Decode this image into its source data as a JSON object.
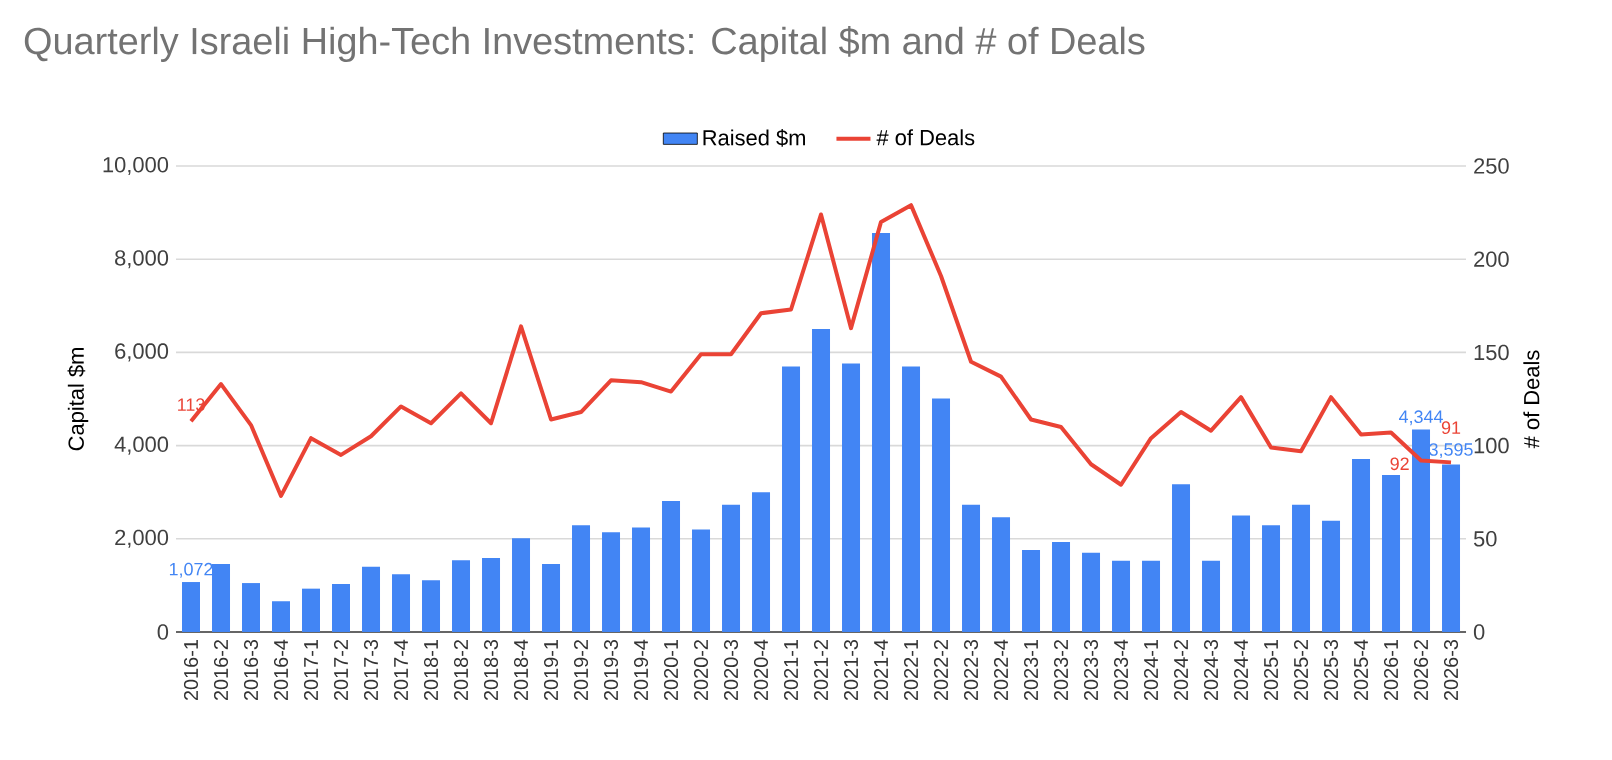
{
  "chart_data": {
    "type": "bar",
    "title": "Quarterly Israeli High-Tech Investments: Capital $m and # of Deals",
    "ylabel": "Capital $m",
    "y2label": "# of Deals",
    "categories": [
      "2016-1",
      "2016-2",
      "2016-3",
      "2016-4",
      "2017-1",
      "2017-2",
      "2017-3",
      "2017-4",
      "2018-1",
      "2018-2",
      "2018-3",
      "2018-4",
      "2019-1",
      "2019-2",
      "2019-3",
      "2019-4",
      "2020-1",
      "2020-2",
      "2020-3",
      "2020-4",
      "2021-1",
      "2021-2",
      "2021-3",
      "2021-4",
      "2022-1",
      "2022-2",
      "2022-3",
      "2022-4",
      "2023-1",
      "2023-2",
      "2023-3",
      "2023-4",
      "2024-1",
      "2024-2",
      "2024-3",
      "2024-4",
      "2025-1",
      "2025-2",
      "2025-3",
      "2025-4",
      "2026-1",
      "2026-2",
      "2026-3"
    ],
    "series": [
      {
        "name": "Raised $m",
        "color": "#4285f4",
        "values": [
          1072,
          1460,
          1050,
          660,
          930,
          1030,
          1400,
          1240,
          1110,
          1540,
          1590,
          2010,
          1460,
          2290,
          2140,
          2240,
          2810,
          2200,
          2730,
          3000,
          5700,
          6500,
          5760,
          8560,
          5700,
          5010,
          2730,
          2460,
          1760,
          1930,
          1700,
          1530,
          1530,
          3170,
          1530,
          2500,
          2290,
          2730,
          2390,
          3710,
          3370,
          4344,
          3595
        ],
        "value_labels": [
          "1,072",
          null,
          null,
          null,
          null,
          null,
          null,
          null,
          null,
          null,
          null,
          null,
          null,
          null,
          null,
          null,
          null,
          null,
          null,
          null,
          null,
          null,
          null,
          null,
          null,
          null,
          null,
          null,
          null,
          null,
          null,
          null,
          null,
          null,
          null,
          null,
          null,
          null,
          null,
          null,
          null,
          "4,344",
          "3,595"
        ]
      },
      {
        "name": "# of Deals",
        "type": "line",
        "axis": "y2",
        "color": "#ea4335",
        "values": [
          113,
          133,
          111,
          73,
          104,
          95,
          105,
          121,
          112,
          128,
          112,
          164,
          114,
          118,
          135,
          134,
          129,
          149,
          149,
          171,
          173,
          224,
          163,
          220,
          229,
          191,
          145,
          137,
          114,
          110,
          90,
          79,
          104,
          118,
          108,
          126,
          99,
          97,
          126,
          106,
          107,
          92,
          91
        ],
        "value_labels": [
          "113",
          null,
          null,
          null,
          null,
          null,
          null,
          null,
          null,
          null,
          null,
          null,
          null,
          null,
          null,
          null,
          null,
          null,
          null,
          null,
          null,
          null,
          null,
          null,
          null,
          null,
          null,
          null,
          null,
          null,
          null,
          null,
          null,
          null,
          null,
          null,
          null,
          null,
          null,
          null,
          null,
          "92",
          "91"
        ]
      }
    ],
    "ylim": [
      0,
      10000
    ],
    "yticks": [
      0,
      {
        "value": 2000,
        "label": "2,000"
      },
      {
        "value": 4000,
        "label": "4,000"
      },
      {
        "value": 6000,
        "label": "6,000"
      },
      {
        "value": 8000,
        "label": "8,000"
      },
      {
        "value": 10000,
        "label": "10,000"
      }
    ],
    "y2lim": [
      0,
      250
    ],
    "y2ticks": [
      0,
      50,
      100,
      150,
      200,
      250
    ],
    "grid": "y",
    "legend": "top"
  }
}
